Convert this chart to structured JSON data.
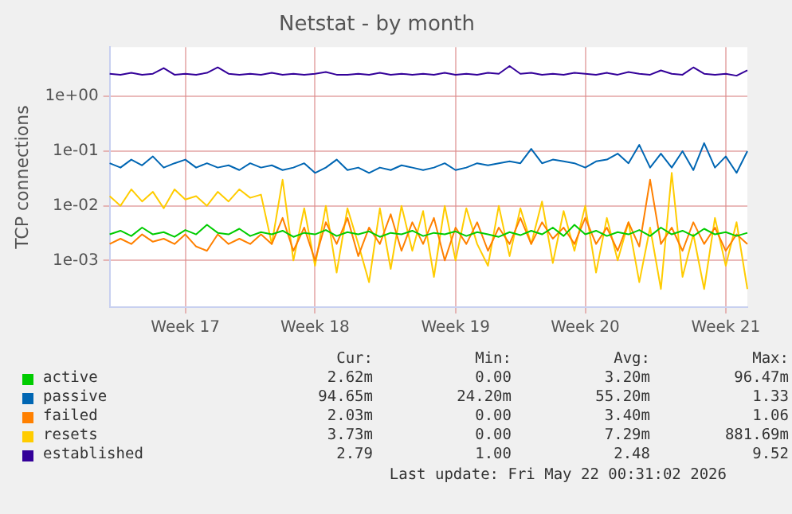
{
  "chart_data": {
    "type": "line",
    "title": "Netstat - by month",
    "ylabel": "TCP connections",
    "log": "y",
    "grid": true,
    "legend": "bottom",
    "marker": "none",
    "line_style": "solid",
    "categories": [
      null,
      null,
      null,
      null,
      null,
      null,
      null,
      "Week 17",
      null,
      null,
      null,
      null,
      null,
      null,
      null,
      null,
      null,
      null,
      null,
      "Week 18",
      null,
      null,
      null,
      null,
      null,
      null,
      null,
      null,
      null,
      null,
      null,
      null,
      "Week 19",
      null,
      null,
      null,
      null,
      null,
      null,
      null,
      null,
      null,
      null,
      null,
      "Week 20",
      null,
      null,
      null,
      null,
      null,
      null,
      null,
      null,
      null,
      null,
      null,
      null,
      "Week 21",
      null,
      null
    ],
    "ylim": [
      0.00014,
      8
    ],
    "yticks": [
      {
        "value": 0.001,
        "label": "1e-03"
      },
      {
        "value": 0.01,
        "label": "1e-02"
      },
      {
        "value": 0.1,
        "label": "1e-01"
      },
      {
        "value": 1,
        "label": "1e+00"
      }
    ],
    "series": [
      {
        "name": "active",
        "color": "#00cc00",
        "values": [
          0.003,
          0.0035,
          0.0028,
          0.004,
          0.003,
          0.0033,
          0.0027,
          0.0036,
          0.003,
          0.0045,
          0.0032,
          0.003,
          0.0038,
          0.0028,
          0.0033,
          0.003,
          0.0035,
          0.0027,
          0.0032,
          0.003,
          0.0036,
          0.0028,
          0.0033,
          0.003,
          0.0034,
          0.0027,
          0.0032,
          0.003,
          0.0035,
          0.0028,
          0.0032,
          0.003,
          0.0034,
          0.0028,
          0.0033,
          0.003,
          0.0027,
          0.0033,
          0.0029,
          0.0035,
          0.003,
          0.004,
          0.0028,
          0.0045,
          0.003,
          0.0035,
          0.0028,
          0.0033,
          0.003,
          0.0036,
          0.0028,
          0.004,
          0.003,
          0.0035,
          0.0028,
          0.0038,
          0.003,
          0.0033,
          0.0028,
          0.0032
        ]
      },
      {
        "name": "passive",
        "color": "#0066b3",
        "values": [
          0.06,
          0.05,
          0.07,
          0.055,
          0.08,
          0.05,
          0.06,
          0.07,
          0.05,
          0.06,
          0.05,
          0.055,
          0.045,
          0.06,
          0.05,
          0.055,
          0.045,
          0.05,
          0.06,
          0.04,
          0.05,
          0.07,
          0.045,
          0.05,
          0.04,
          0.05,
          0.045,
          0.055,
          0.05,
          0.045,
          0.05,
          0.06,
          0.045,
          0.05,
          0.06,
          0.055,
          0.06,
          0.065,
          0.06,
          0.11,
          0.06,
          0.07,
          0.065,
          0.06,
          0.05,
          0.065,
          0.07,
          0.09,
          0.06,
          0.13,
          0.05,
          0.09,
          0.05,
          0.1,
          0.045,
          0.14,
          0.05,
          0.08,
          0.04,
          0.1
        ]
      },
      {
        "name": "failed",
        "color": "#ff8000",
        "values": [
          0.002,
          0.0025,
          0.002,
          0.003,
          0.0022,
          0.0025,
          0.002,
          0.003,
          0.0018,
          0.0015,
          0.003,
          0.002,
          0.0025,
          0.002,
          0.003,
          0.002,
          0.006,
          0.0015,
          0.004,
          0.001,
          0.005,
          0.002,
          0.006,
          0.0012,
          0.004,
          0.002,
          0.007,
          0.0015,
          0.005,
          0.002,
          0.006,
          0.001,
          0.004,
          0.002,
          0.005,
          0.0015,
          0.004,
          0.002,
          0.006,
          0.002,
          0.005,
          0.0025,
          0.004,
          0.002,
          0.006,
          0.002,
          0.004,
          0.0015,
          0.005,
          0.0018,
          0.03,
          0.002,
          0.004,
          0.0015,
          0.005,
          0.002,
          0.004,
          0.0015,
          0.003,
          0.002
        ]
      },
      {
        "name": "resets",
        "color": "#ffcc00",
        "values": [
          0.015,
          0.01,
          0.02,
          0.012,
          0.018,
          0.009,
          0.02,
          0.013,
          0.015,
          0.01,
          0.018,
          0.012,
          0.02,
          0.014,
          0.016,
          0.002,
          0.03,
          0.001,
          0.009,
          0.0008,
          0.01,
          0.0006,
          0.009,
          0.002,
          0.0004,
          0.009,
          0.0007,
          0.01,
          0.0015,
          0.008,
          0.0005,
          0.01,
          0.001,
          0.009,
          0.002,
          0.0008,
          0.01,
          0.0012,
          0.009,
          0.002,
          0.012,
          0.0009,
          0.008,
          0.0015,
          0.01,
          0.0006,
          0.006,
          0.001,
          0.005,
          0.0004,
          0.004,
          0.0003,
          0.04,
          0.0005,
          0.003,
          0.0003,
          0.006,
          0.0008,
          0.005,
          0.0003
        ]
      },
      {
        "name": "established",
        "color": "#330099",
        "values": [
          2.6,
          2.5,
          2.7,
          2.5,
          2.6,
          3.3,
          2.5,
          2.6,
          2.5,
          2.7,
          3.4,
          2.6,
          2.5,
          2.6,
          2.5,
          2.7,
          2.5,
          2.6,
          2.5,
          2.6,
          2.8,
          2.5,
          2.5,
          2.6,
          2.5,
          2.7,
          2.5,
          2.6,
          2.5,
          2.6,
          2.5,
          2.7,
          2.5,
          2.6,
          2.5,
          2.7,
          2.6,
          3.6,
          2.6,
          2.7,
          2.5,
          2.6,
          2.5,
          2.7,
          2.6,
          2.5,
          2.7,
          2.5,
          2.8,
          2.6,
          2.5,
          3.0,
          2.6,
          2.5,
          3.4,
          2.6,
          2.5,
          2.6,
          2.4,
          3.0
        ]
      }
    ],
    "annotations": [
      "Cur:",
      "Min:",
      "Avg:",
      "Max:",
      "2.62m",
      "0.00",
      "3.20m",
      "96.47m",
      "94.65m",
      "24.20m",
      "55.20m",
      "1.33",
      "2.03m",
      "0.00",
      "3.40m",
      "1.06",
      "3.73m",
      "0.00",
      "7.29m",
      "881.69m",
      "2.79",
      "1.00",
      "2.48",
      "9.52",
      "Last update: Fri May 22 00:31:02 2026"
    ]
  }
}
